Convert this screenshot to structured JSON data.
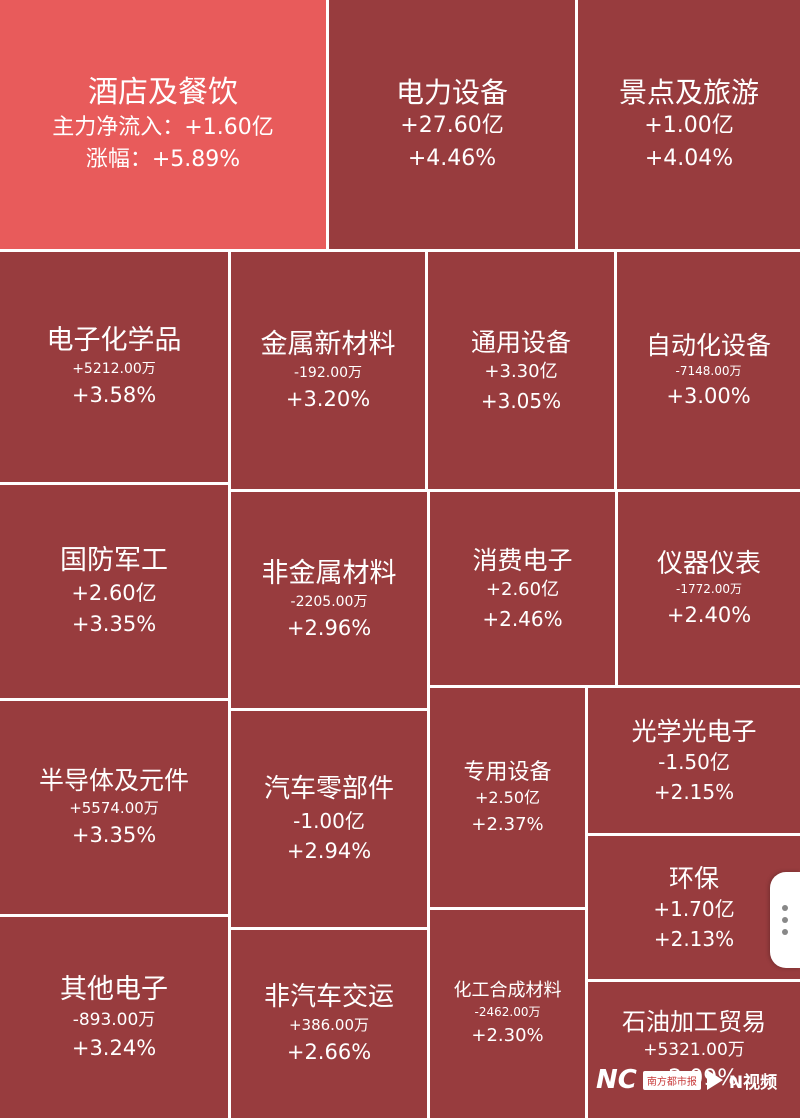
{
  "colors": {
    "cell": "#983c3e",
    "highlight": "#e85b5b",
    "gap": "#ffffff"
  },
  "tiles": [
    {
      "name": "酒店及餐饮",
      "line": "主力净流入：+1.60亿",
      "pct": "涨幅：+5.89%"
    },
    {
      "name": "电力设备",
      "line": "+27.60亿",
      "pct": "+4.46%"
    },
    {
      "name": "景点及旅游",
      "line": "+1.00亿",
      "pct": "+4.04%"
    },
    {
      "name": "电子化学品",
      "line": "+5212.00万",
      "pct": "+3.58%"
    },
    {
      "name": "金属新材料",
      "line": "-192.00万",
      "pct": "+3.20%"
    },
    {
      "name": "通用设备",
      "line": "+3.30亿",
      "pct": "+3.05%"
    },
    {
      "name": "自动化设备",
      "line": "-7148.00万",
      "pct": "+3.00%"
    },
    {
      "name": "国防军工",
      "line": "+2.60亿",
      "pct": "+3.35%"
    },
    {
      "name": "非金属材料",
      "line": "-2205.00万",
      "pct": "+2.96%"
    },
    {
      "name": "消费电子",
      "line": "+2.60亿",
      "pct": "+2.46%"
    },
    {
      "name": "仪器仪表",
      "line": "-1772.00万",
      "pct": "+2.40%"
    },
    {
      "name": "半导体及元件",
      "line": "+5574.00万",
      "pct": "+3.35%"
    },
    {
      "name": "汽车零部件",
      "line": "-1.00亿",
      "pct": "+2.94%"
    },
    {
      "name": "专用设备",
      "line": "+2.50亿",
      "pct": "+2.37%"
    },
    {
      "name": "光学光电子",
      "line": "-1.50亿",
      "pct": "+2.15%"
    },
    {
      "name": "环保",
      "line": "+1.70亿",
      "pct": "+2.13%"
    },
    {
      "name": "其他电子",
      "line": "-893.00万",
      "pct": "+3.24%"
    },
    {
      "name": "非汽车交运",
      "line": "+386.00万",
      "pct": "+2.66%"
    },
    {
      "name": "化工合成材料",
      "line": "-2462.00万",
      "pct": "+2.30%"
    },
    {
      "name": "石油加工贸易",
      "line": "+5321.00万",
      "pct": "+2.09%"
    }
  ],
  "watermark": {
    "logo": "NC",
    "box": "南方都市报",
    "text": "N视频"
  },
  "side_handle": {
    "icon": "more-vertical-icon"
  }
}
